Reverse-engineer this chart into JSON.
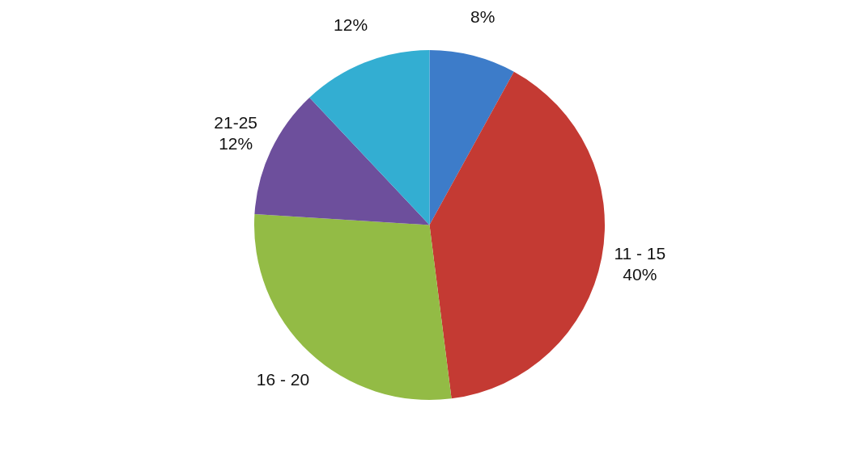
{
  "chart_data": {
    "type": "pie",
    "categories": [
      null,
      "11 - 15",
      "16 - 20",
      "21-25",
      null
    ],
    "values": [
      8,
      40,
      28,
      12,
      12
    ],
    "colors": [
      "#3d7cc9",
      "#c43a33",
      "#93bb45",
      "#6d4f9c",
      "#33aed2"
    ],
    "value_labels": [
      "8%",
      "40%",
      null,
      "12%",
      "12%"
    ]
  }
}
